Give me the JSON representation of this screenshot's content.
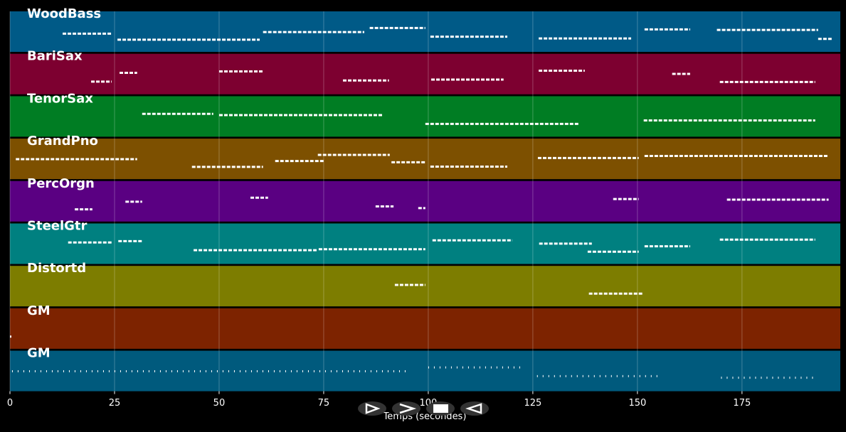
{
  "chart_data": {
    "type": "piano-roll",
    "xlabel": "Temps (secondes)",
    "xlim": [
      0,
      198.5
    ],
    "xticks": [
      0,
      25,
      50,
      75,
      100,
      125,
      150,
      175
    ],
    "grid": true,
    "tracks": [
      {
        "name": "WoodBass",
        "color": "#005a87",
        "segments": [
          [
            12.6,
            24.3
          ],
          [
            25.7,
            59.7
          ],
          [
            60.5,
            84.7
          ],
          [
            86,
            99.3
          ],
          [
            100.5,
            118.9
          ],
          [
            126.4,
            148.5
          ],
          [
            151.7,
            162.6
          ],
          [
            169,
            193.2
          ],
          [
            193.2,
            196.6
          ]
        ]
      },
      {
        "name": "BariSax",
        "color": "#7d0030",
        "segments": [
          [
            19.4,
            24.3
          ],
          [
            26.2,
            30.4
          ],
          [
            50,
            60.5
          ],
          [
            79.6,
            90.6
          ],
          [
            100.7,
            118
          ],
          [
            126.4,
            137.4
          ],
          [
            158.3,
            162.6
          ],
          [
            169.7,
            192.5
          ]
        ]
      },
      {
        "name": "TenorSax",
        "color": "#007d23",
        "segments": [
          [
            31.6,
            48.6
          ],
          [
            50,
            89.1
          ],
          [
            99.3,
            136.2
          ],
          [
            151.5,
            192.5
          ]
        ]
      },
      {
        "name": "GrandPno",
        "color": "#7d5000",
        "segments": [
          [
            1.4,
            30.4
          ],
          [
            43.5,
            60.5
          ],
          [
            63.4,
            75
          ],
          [
            73.6,
            90.8
          ],
          [
            91.2,
            99.3
          ],
          [
            100.5,
            118.9
          ],
          [
            126.2,
            150.3
          ],
          [
            151.7,
            195.7
          ]
        ]
      },
      {
        "name": "PercOrgn",
        "color": "#5a0082",
        "segments": [
          [
            15.5,
            19.7
          ],
          [
            27.6,
            31.6
          ],
          [
            57.5,
            61.7
          ],
          [
            87.4,
            91.7
          ],
          [
            97.6,
            99.3
          ],
          [
            144.2,
            150.3
          ],
          [
            171.4,
            195.7
          ]
        ]
      },
      {
        "name": "SteelGtr",
        "color": "#008080",
        "segments": [
          [
            13.9,
            24.3
          ],
          [
            25.9,
            31.6
          ],
          [
            43.9,
            73.3
          ],
          [
            73.8,
            99.3
          ],
          [
            101,
            120.1
          ],
          [
            126.5,
            139.1
          ],
          [
            138.1,
            150.3
          ],
          [
            151.7,
            162.6
          ],
          [
            169.7,
            192.5
          ]
        ]
      },
      {
        "name": "Distortd",
        "color": "#7d7d00",
        "segments": [
          [
            92,
            99.3
          ],
          [
            138.4,
            151.2
          ]
        ]
      },
      {
        "name": "GM",
        "color": "#7d2300",
        "segments": [
          [
            0,
            0.3
          ]
        ]
      },
      {
        "name": "GM",
        "color": "#005a7d",
        "segments": [
          [
            0.5,
            95
          ],
          [
            100,
            123
          ],
          [
            126,
            155
          ],
          [
            170,
            192
          ]
        ]
      }
    ]
  }
}
